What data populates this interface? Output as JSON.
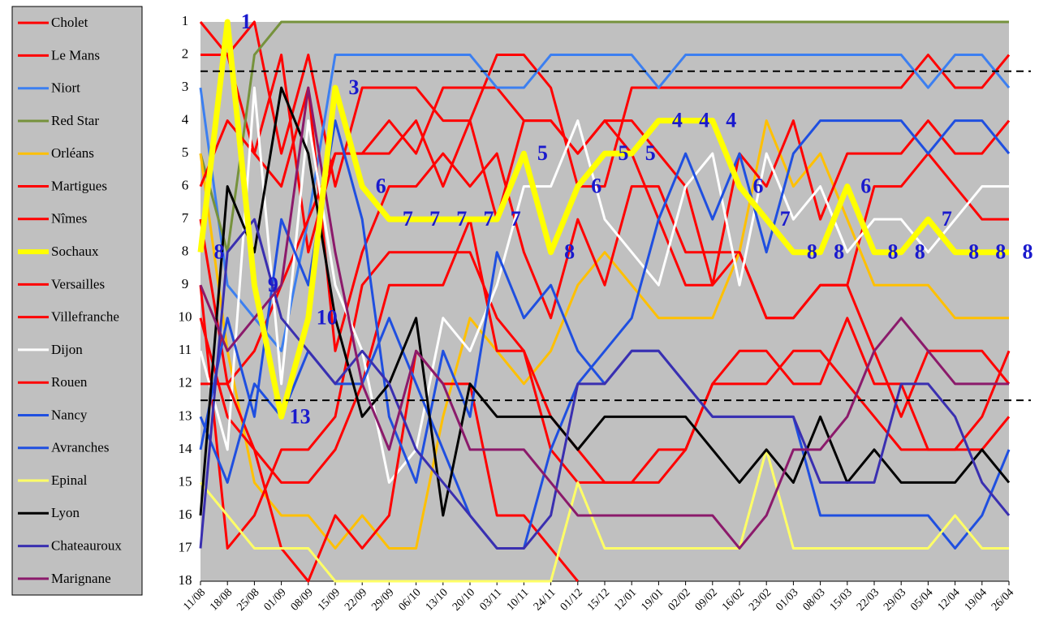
{
  "chart_data": {
    "type": "line",
    "x": [
      "11/08",
      "18/08",
      "25/08",
      "01/09",
      "08/09",
      "15/09",
      "22/09",
      "29/09",
      "06/10",
      "13/10",
      "20/10",
      "03/11",
      "10/11",
      "24/11",
      "01/12",
      "15/12",
      "12/01",
      "19/01",
      "02/02",
      "09/02",
      "16/02",
      "23/02",
      "01/03",
      "08/03",
      "15/03",
      "22/03",
      "29/03",
      "05/04",
      "12/04",
      "19/04",
      "26/04"
    ],
    "ylim": [
      1,
      18
    ],
    "y_inverted": true,
    "yticks": [
      1,
      2,
      3,
      4,
      5,
      6,
      7,
      8,
      9,
      10,
      11,
      12,
      13,
      14,
      15,
      16,
      17,
      18
    ],
    "reference_lines": [
      2.5,
      12.5
    ],
    "series": [
      {
        "name": "Cholet",
        "color": "#ff0000",
        "values": [
          1,
          2,
          5,
          2,
          8,
          5,
          5,
          4,
          5,
          3,
          3,
          3,
          4,
          4,
          5,
          4,
          4,
          5,
          6,
          9,
          8,
          10,
          10,
          9,
          9,
          6,
          6,
          5,
          6,
          7,
          7
        ]
      },
      {
        "name": "Le Mans",
        "color": "#ff0000",
        "values": [
          2,
          2,
          1,
          5,
          2,
          6,
          3,
          3,
          3,
          4,
          4,
          2,
          2,
          3,
          6,
          6,
          3,
          3,
          3,
          3,
          3,
          3,
          3,
          3,
          3,
          3,
          3,
          2,
          3,
          3,
          2
        ]
      },
      {
        "name": "Niort",
        "color": "#3c7ff0",
        "values": [
          3,
          9,
          10,
          11,
          7,
          2,
          2,
          2,
          2,
          2,
          2,
          3,
          3,
          2,
          2,
          2,
          2,
          3,
          2,
          2,
          2,
          2,
          2,
          2,
          2,
          2,
          2,
          3,
          2,
          2,
          3
        ]
      },
      {
        "name": "Red Star",
        "color": "#76923c",
        "values": [
          5,
          8,
          2,
          1,
          1,
          1,
          1,
          1,
          1,
          1,
          1,
          1,
          1,
          1,
          1,
          1,
          1,
          1,
          1,
          1,
          1,
          1,
          1,
          1,
          1,
          1,
          1,
          1,
          1,
          1,
          1
        ]
      },
      {
        "name": "Orléans",
        "color": "#ffc000",
        "values": [
          5,
          11,
          15,
          16,
          16,
          17,
          16,
          17,
          17,
          13,
          10,
          11,
          12,
          11,
          9,
          8,
          9,
          10,
          10,
          10,
          8,
          4,
          6,
          5,
          7,
          9,
          9,
          9,
          10,
          10,
          10
        ]
      },
      {
        "name": "Martigues",
        "color": "#ff0000",
        "values": [
          6,
          4,
          5,
          6,
          3,
          11,
          8,
          6,
          6,
          5,
          6,
          5,
          8,
          10,
          7,
          9,
          6,
          6,
          8,
          8,
          8,
          10,
          10,
          9,
          9,
          11,
          13,
          11,
          11,
          11,
          12
        ]
      },
      {
        "name": "Nîmes",
        "color": "#ff0000",
        "values": [
          7,
          12,
          11,
          9,
          7,
          5,
          5,
          5,
          4,
          6,
          4,
          7,
          4,
          4,
          5,
          4,
          5,
          7,
          9,
          9,
          5,
          6,
          4,
          7,
          5,
          5,
          5,
          4,
          5,
          5,
          4
        ]
      },
      {
        "name": "Sochaux",
        "color": "#ffff00",
        "highlight": true,
        "values": [
          8,
          1,
          9,
          13,
          10,
          3,
          6,
          7,
          7,
          7,
          7,
          7,
          5,
          8,
          6,
          5,
          5,
          4,
          4,
          4,
          6,
          7,
          8,
          8,
          6,
          8,
          8,
          7,
          8,
          8,
          8
        ]
      },
      {
        "name": "Versailles",
        "color": "#ff0000",
        "values": [
          9,
          17,
          16,
          14,
          14,
          13,
          9,
          8,
          8,
          8,
          8,
          10,
          11,
          13,
          14,
          15,
          15,
          15,
          14,
          12,
          11,
          11,
          12,
          12,
          10,
          12,
          12,
          14,
          14,
          13,
          11
        ]
      },
      {
        "name": "Villefranche",
        "color": "#ff0000",
        "values": [
          10,
          13,
          14,
          15,
          15,
          14,
          12,
          9,
          9,
          9,
          7,
          11,
          11,
          14,
          15,
          15,
          15,
          14,
          14,
          12,
          12,
          12,
          11,
          11,
          12,
          13,
          14,
          14,
          14,
          14,
          13
        ]
      },
      {
        "name": "Dijon",
        "color": "#ffffff",
        "values": [
          11,
          14,
          3,
          12,
          4,
          9,
          11,
          15,
          14,
          10,
          11,
          9,
          6,
          6,
          4,
          7,
          8,
          9,
          6,
          5,
          9,
          5,
          7,
          6,
          8,
          7,
          7,
          8,
          7,
          6,
          6
        ]
      },
      {
        "name": "Rouen",
        "color": "#ff0000",
        "values": [
          12,
          12,
          14,
          17,
          18,
          16,
          17,
          16,
          11,
          12,
          12,
          16,
          16,
          17,
          18,
          null,
          null,
          null,
          null,
          null,
          null,
          null,
          null,
          null,
          null,
          null,
          null,
          null,
          null,
          null,
          null
        ]
      },
      {
        "name": "Nancy",
        "color": "#1f4fe0",
        "values": [
          13,
          15,
          12,
          13,
          11,
          12,
          12,
          10,
          12,
          14,
          16,
          17,
          17,
          14,
          12,
          11,
          10,
          7,
          5,
          7,
          5,
          8,
          5,
          4,
          4,
          4,
          4,
          5,
          4,
          4,
          5
        ]
      },
      {
        "name": "Avranches",
        "color": "#1f4fe0",
        "values": [
          14,
          10,
          13,
          7,
          9,
          4,
          7,
          13,
          15,
          11,
          13,
          8,
          10,
          9,
          11,
          12,
          11,
          11,
          12,
          13,
          13,
          13,
          13,
          16,
          16,
          16,
          16,
          16,
          17,
          16,
          14
        ]
      },
      {
        "name": "Epinal",
        "color": "#ffff66",
        "values": [
          15,
          16,
          17,
          17,
          17,
          18,
          18,
          18,
          18,
          18,
          18,
          18,
          18,
          18,
          15,
          17,
          17,
          17,
          17,
          17,
          17,
          14,
          17,
          17,
          17,
          17,
          17,
          17,
          16,
          17,
          17
        ]
      },
      {
        "name": "Lyon",
        "color": "#000000",
        "values": [
          16,
          6,
          8,
          3,
          5,
          10,
          13,
          12,
          10,
          16,
          12,
          13,
          13,
          13,
          14,
          13,
          13,
          13,
          13,
          14,
          15,
          14,
          15,
          13,
          15,
          14,
          15,
          15,
          15,
          14,
          15
        ]
      },
      {
        "name": "Chateauroux",
        "color": "#3a2fb0",
        "values": [
          17,
          8,
          7,
          10,
          11,
          12,
          11,
          12,
          14,
          15,
          16,
          17,
          17,
          16,
          12,
          12,
          11,
          11,
          12,
          13,
          13,
          13,
          13,
          15,
          15,
          15,
          12,
          12,
          13,
          15,
          16
        ]
      },
      {
        "name": "Marignane",
        "color": "#8b1a6b",
        "values": [
          9,
          11,
          10,
          9,
          3,
          8,
          12,
          14,
          11,
          12,
          14,
          14,
          14,
          15,
          16,
          16,
          16,
          16,
          16,
          16,
          17,
          16,
          14,
          14,
          13,
          11,
          10,
          11,
          12,
          12,
          12
        ]
      }
    ]
  }
}
